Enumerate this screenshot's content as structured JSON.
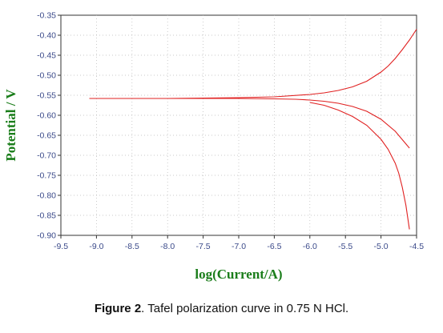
{
  "chart_data": {
    "type": "line",
    "xlabel": "log(Current/A)",
    "ylabel": "Potential / V",
    "xlim": [
      -9.5,
      -4.5
    ],
    "ylim": [
      -0.9,
      -0.35
    ],
    "x_ticks": [
      "-9.5",
      "-9.0",
      "-8.5",
      "-8.0",
      "-7.5",
      "-7.0",
      "-6.5",
      "-6.0",
      "-5.5",
      "-5.0",
      "-4.5"
    ],
    "y_ticks": [
      "-0.35",
      "-0.40",
      "-0.45",
      "-0.50",
      "-0.55",
      "-0.60",
      "-0.65",
      "-0.70",
      "-0.75",
      "-0.80",
      "-0.85",
      "-0.90"
    ],
    "grid": true,
    "series": [
      {
        "x": [
          -9.1,
          -8.5,
          -8.0,
          -7.5,
          -7.0,
          -6.5,
          -6.2,
          -6.0,
          -5.8,
          -5.6,
          -5.4,
          -5.2,
          -5.0,
          -4.8,
          -4.6
        ],
        "y": [
          -0.558,
          -0.558,
          -0.558,
          -0.558,
          -0.558,
          -0.559,
          -0.56,
          -0.562,
          -0.565,
          -0.57,
          -0.578,
          -0.59,
          -0.61,
          -0.64,
          -0.682
        ]
      },
      {
        "x": [
          -8.0,
          -7.5,
          -7.0,
          -6.5,
          -6.0,
          -5.8,
          -5.6,
          -5.4,
          -5.2,
          -5.0,
          -4.9,
          -4.8,
          -4.7,
          -4.6,
          -4.5
        ],
        "y": [
          -0.558,
          -0.557,
          -0.556,
          -0.554,
          -0.548,
          -0.544,
          -0.538,
          -0.529,
          -0.515,
          -0.492,
          -0.477,
          -0.458,
          -0.436,
          -0.412,
          -0.385
        ]
      },
      {
        "x": [
          -6.0,
          -5.8,
          -5.6,
          -5.4,
          -5.2,
          -5.0,
          -4.9,
          -4.8,
          -4.75,
          -4.7,
          -4.65,
          -4.6
        ],
        "y": [
          -0.568,
          -0.575,
          -0.587,
          -0.603,
          -0.625,
          -0.66,
          -0.685,
          -0.72,
          -0.745,
          -0.78,
          -0.825,
          -0.885
        ]
      }
    ],
    "line_color": "#e02020"
  },
  "caption": {
    "label": "Figure 2",
    "text": ". Tafel polarization curve in 0.75 N HCl."
  }
}
